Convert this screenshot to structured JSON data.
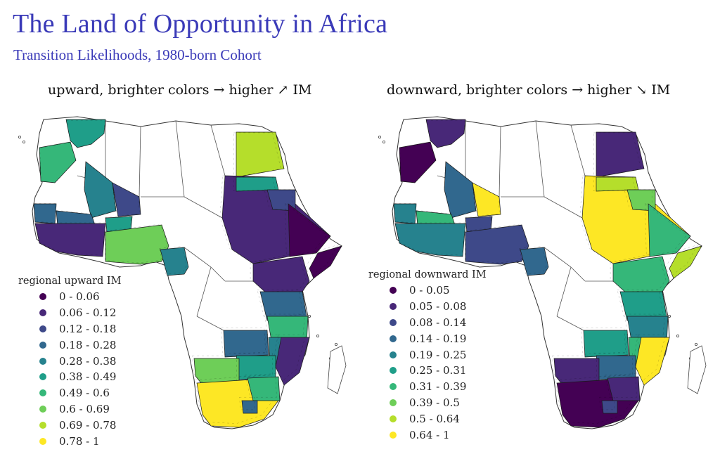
{
  "title": "The Land of Opportunity in Africa",
  "subtitle": "Transition Likelihoods, 1980-born Cohort",
  "panels": [
    {
      "id": "upward",
      "heading": "upward, brighter colors → higher ↗ IM",
      "legend_title": "regional upward IM",
      "legend": [
        {
          "label": "0 - 0.06",
          "color": "#440154"
        },
        {
          "label": "0.06 - 0.12",
          "color": "#482878"
        },
        {
          "label": "0.12 - 0.18",
          "color": "#3e4989"
        },
        {
          "label": "0.18 - 0.28",
          "color": "#31688e"
        },
        {
          "label": "0.28 - 0.38",
          "color": "#26828e"
        },
        {
          "label": "0.38 - 0.49",
          "color": "#1f9e89"
        },
        {
          "label": "0.49 - 0.6",
          "color": "#35b779"
        },
        {
          "label": "0.6 - 0.69",
          "color": "#6ece58"
        },
        {
          "label": "0.69 - 0.78",
          "color": "#b5de2b"
        },
        {
          "label": "0.78 - 1",
          "color": "#fde725"
        }
      ]
    },
    {
      "id": "downward",
      "heading": "downward, brighter colors → higher ↘ IM",
      "legend_title": "regional downward IM",
      "legend": [
        {
          "label": "0 - 0.05",
          "color": "#440154"
        },
        {
          "label": "0.05 - 0.08",
          "color": "#482878"
        },
        {
          "label": "0.08 - 0.14",
          "color": "#3e4989"
        },
        {
          "label": "0.14 - 0.19",
          "color": "#31688e"
        },
        {
          "label": "0.19 - 0.25",
          "color": "#26828e"
        },
        {
          "label": "0.25 - 0.31",
          "color": "#1f9e89"
        },
        {
          "label": "0.31 - 0.39",
          "color": "#35b779"
        },
        {
          "label": "0.39 - 0.5",
          "color": "#6ece58"
        },
        {
          "label": "0.5 - 0.64",
          "color": "#b5de2b"
        },
        {
          "label": "0.64 - 1",
          "color": "#fde725"
        }
      ]
    }
  ],
  "map_regions": {
    "upward": {
      "maghreb-morocco": 5,
      "western-sahara": 6,
      "mauritania": 4,
      "mali": 2,
      "sahel-west": 3,
      "west-africa": 1,
      "senegal": 3,
      "burkina": 5,
      "nigeria-benin": 7,
      "cameroon": 4,
      "chad-sudan": 1,
      "egypt-nile": 8,
      "sudan-north": 5,
      "south-sudan": 2,
      "ethiopia": 0,
      "horn-somalia": 0,
      "east-africa": 1,
      "kenya": 3,
      "tanzania": 6,
      "zambia": 3,
      "malawi": 4,
      "mozambique": 1,
      "zimbabwe": 5,
      "botswana-namibia": 7,
      "south-africa": 9,
      "south-africa-east": 6,
      "lesotho": 3
    },
    "downward": {
      "maghreb-morocco": 1,
      "western-sahara": 0,
      "mauritania": 3,
      "mali": 9,
      "sahel-west": 6,
      "west-africa": 4,
      "senegal": 4,
      "burkina": 2,
      "nigeria-benin": 2,
      "cameroon": 3,
      "chad-sudan": 9,
      "egypt-nile": 1,
      "sudan-north": 8,
      "south-sudan": 7,
      "ethiopia": 6,
      "horn-somalia": 8,
      "east-africa": 6,
      "kenya": 5,
      "tanzania": 4,
      "zambia": 5,
      "malawi": 6,
      "mozambique": 9,
      "zimbabwe": 3,
      "botswana-namibia": 1,
      "south-africa": 0,
      "south-africa-east": 1,
      "lesotho": 2
    }
  }
}
